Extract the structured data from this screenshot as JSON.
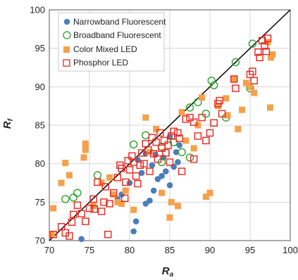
{
  "chart_data": {
    "type": "scatter",
    "xlabel": "R",
    "xlabel_sub": "a",
    "ylabel": "R",
    "ylabel_sub": "f",
    "xlim": [
      70,
      100
    ],
    "ylim": [
      70,
      100
    ],
    "xticks": [
      70,
      75,
      80,
      85,
      90,
      95,
      100
    ],
    "yticks": [
      70,
      75,
      80,
      85,
      90,
      95,
      100
    ],
    "grid": true,
    "reference_line": {
      "from": [
        70,
        70
      ],
      "to": [
        100,
        100
      ],
      "color": "#000000"
    },
    "legend_position": "top-left",
    "series": [
      {
        "name": "Narrowband Fluorescent",
        "marker": "filled-circle",
        "color": "#4a7ebb",
        "points": [
          [
            74,
            70.2
          ],
          [
            80.5,
            71.2
          ],
          [
            80.8,
            72.5
          ],
          [
            82,
            74.8
          ],
          [
            82.5,
            75.2
          ],
          [
            83,
            76.5
          ],
          [
            83.5,
            78
          ],
          [
            84,
            78.4
          ],
          [
            84.5,
            79
          ],
          [
            85,
            77.2
          ],
          [
            85.5,
            79.6
          ],
          [
            86,
            80.2
          ],
          [
            82.8,
            79.8
          ],
          [
            81.5,
            78.8
          ],
          [
            80,
            77.5
          ],
          [
            79,
            76
          ],
          [
            78.5,
            75.4
          ],
          [
            84.2,
            80.8
          ],
          [
            83.2,
            81.2
          ],
          [
            85.8,
            81.5
          ],
          [
            85,
            83.5
          ],
          [
            86.2,
            82.4
          ],
          [
            81,
            80.5
          ],
          [
            82,
            81.3
          ]
        ]
      },
      {
        "name": "Broadband Fluorescent",
        "marker": "open-circle",
        "color": "#2ca02c",
        "points": [
          [
            72,
            75.4
          ],
          [
            73,
            75.6
          ],
          [
            73.5,
            76.2
          ],
          [
            76,
            78.5
          ],
          [
            80.5,
            82.5
          ],
          [
            82,
            83.7
          ],
          [
            84,
            82.2
          ],
          [
            85.5,
            82.8
          ],
          [
            86.5,
            81.5
          ],
          [
            87.5,
            80.8
          ],
          [
            88.5,
            88
          ],
          [
            89.5,
            86.5
          ],
          [
            90.2,
            90.8
          ],
          [
            90.5,
            90.2
          ],
          [
            92,
            86
          ],
          [
            93.2,
            93.2
          ],
          [
            95,
            89.8
          ],
          [
            95.3,
            95.6
          ],
          [
            87.5,
            87.3
          ],
          [
            84,
            80.2
          ]
        ]
      },
      {
        "name": "Color Mixed LED",
        "marker": "filled-square",
        "color": "#f5a04a",
        "points": [
          [
            70.5,
            74.2
          ],
          [
            70.3,
            70.8
          ],
          [
            71.5,
            77.5
          ],
          [
            72,
            80.1
          ],
          [
            72.5,
            78.5
          ],
          [
            74.5,
            82.6
          ],
          [
            74.3,
            80.8
          ],
          [
            74.5,
            81.8
          ],
          [
            75.5,
            74.5
          ],
          [
            76.5,
            77.5
          ],
          [
            77.5,
            78.2
          ],
          [
            78,
            76
          ],
          [
            78.5,
            75
          ],
          [
            79,
            74.8
          ],
          [
            79.5,
            76.5
          ],
          [
            80.5,
            74
          ],
          [
            82,
            86
          ],
          [
            82.5,
            81.5
          ],
          [
            83.3,
            84.5
          ],
          [
            84,
            76.2
          ],
          [
            85,
            73
          ],
          [
            85.2,
            75
          ],
          [
            86,
            74.5
          ],
          [
            86.5,
            86.7
          ],
          [
            87,
            83
          ],
          [
            88,
            82
          ],
          [
            88.5,
            85
          ],
          [
            89,
            88.6
          ],
          [
            89.5,
            75.7
          ],
          [
            90,
            76.2
          ],
          [
            91,
            87.5
          ],
          [
            92,
            88.5
          ],
          [
            92.2,
            86.3
          ],
          [
            93,
            91
          ],
          [
            93.5,
            84.5
          ],
          [
            94,
            87
          ],
          [
            94.5,
            90.5
          ],
          [
            95,
            90
          ],
          [
            95.5,
            89.2
          ],
          [
            97.2,
            95.8
          ],
          [
            97.5,
            87.3
          ],
          [
            97.8,
            94.2
          ],
          [
            97.6,
            93.8
          ]
        ]
      },
      {
        "name": "Phosphor LED",
        "marker": "open-square",
        "color": "#e8261f",
        "points": [
          [
            70.5,
            70.8
          ],
          [
            71.5,
            71.8
          ],
          [
            72,
            71
          ],
          [
            72.5,
            70.6
          ],
          [
            72.8,
            72.4
          ],
          [
            73,
            73.4
          ],
          [
            73.5,
            74.6
          ],
          [
            74,
            73.5
          ],
          [
            74.5,
            72.5
          ],
          [
            75,
            74.2
          ],
          [
            75.5,
            75.4
          ],
          [
            76,
            77.6
          ],
          [
            76.5,
            73.8
          ],
          [
            77,
            77
          ],
          [
            77.3,
            70.8
          ],
          [
            77.5,
            74.8
          ],
          [
            78,
            76.2
          ],
          [
            78.5,
            78.2
          ],
          [
            79,
            79.4
          ],
          [
            79.5,
            77.6
          ],
          [
            79.8,
            80.4
          ],
          [
            80,
            79.2
          ],
          [
            80.3,
            81
          ],
          [
            80.5,
            80.2
          ],
          [
            80.8,
            78.4
          ],
          [
            81,
            77.4
          ],
          [
            81.3,
            79.8
          ],
          [
            81.5,
            81.4
          ],
          [
            81.8,
            80
          ],
          [
            82,
            82.6
          ],
          [
            82.3,
            81.8
          ],
          [
            82.5,
            79
          ],
          [
            82.8,
            83.4
          ],
          [
            83,
            81.3
          ],
          [
            83.3,
            82.8
          ],
          [
            83.5,
            80.6
          ],
          [
            83.8,
            84
          ],
          [
            84,
            82
          ],
          [
            84.3,
            83
          ],
          [
            84.5,
            81.4
          ],
          [
            84.8,
            82.4
          ],
          [
            85,
            80.2
          ],
          [
            85.2,
            83.6
          ],
          [
            85.5,
            84.2
          ],
          [
            86,
            84
          ],
          [
            86.2,
            83.3
          ],
          [
            86.5,
            79
          ],
          [
            87,
            85.8
          ],
          [
            87.5,
            86
          ],
          [
            88,
            85.4
          ],
          [
            88,
            80.6
          ],
          [
            88.5,
            83.6
          ],
          [
            89,
            86
          ],
          [
            89.5,
            83
          ],
          [
            90,
            84
          ],
          [
            90.5,
            85.3
          ],
          [
            91,
            87.8
          ],
          [
            91.2,
            88.2
          ],
          [
            91.5,
            86.5
          ],
          [
            93,
            91
          ],
          [
            93.2,
            89.8
          ],
          [
            95,
            91.6
          ],
          [
            95.3,
            92
          ],
          [
            95.5,
            90.8
          ],
          [
            96,
            94.5
          ],
          [
            96.5,
            96
          ],
          [
            96.8,
            95.3
          ],
          [
            97,
            94.6
          ],
          [
            97.2,
            96.3
          ],
          [
            96.2,
            93.8
          ],
          [
            78.8,
            79.8
          ],
          [
            76.8,
            75
          ],
          [
            75.6,
            74.1
          ],
          [
            79.4,
            75.5
          ]
        ]
      }
    ]
  }
}
